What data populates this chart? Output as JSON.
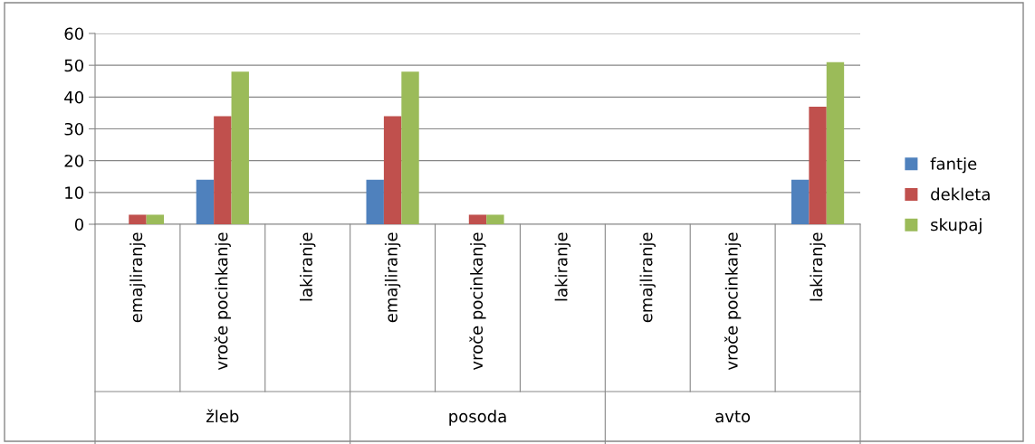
{
  "chart_data": {
    "type": "bar",
    "categories": [
      "emajliranje",
      "vroče pocinkanje",
      "lakiranje",
      "emajliranje",
      "vroče pocinkanje",
      "lakiranje",
      "emajliranje",
      "vroče pocinkanje",
      "lakiranje"
    ],
    "series": [
      {
        "name": "fantje",
        "color": "#4f81bd",
        "values": [
          0,
          14,
          0,
          14,
          0,
          0,
          0,
          0,
          14
        ]
      },
      {
        "name": "dekleta",
        "color": "#c0504d",
        "values": [
          3,
          34,
          0,
          34,
          3,
          0,
          0,
          0,
          37
        ]
      },
      {
        "name": "skupaj",
        "color": "#9bbb59",
        "values": [
          3,
          48,
          0,
          48,
          3,
          0,
          0,
          0,
          51
        ]
      }
    ],
    "annotations": [
      "žleb",
      "posoda",
      "avto"
    ],
    "ylim": [
      0,
      60
    ],
    "yticks": [
      0,
      10,
      20,
      30,
      40,
      50,
      60
    ],
    "grid": "y",
    "legend": "right"
  }
}
